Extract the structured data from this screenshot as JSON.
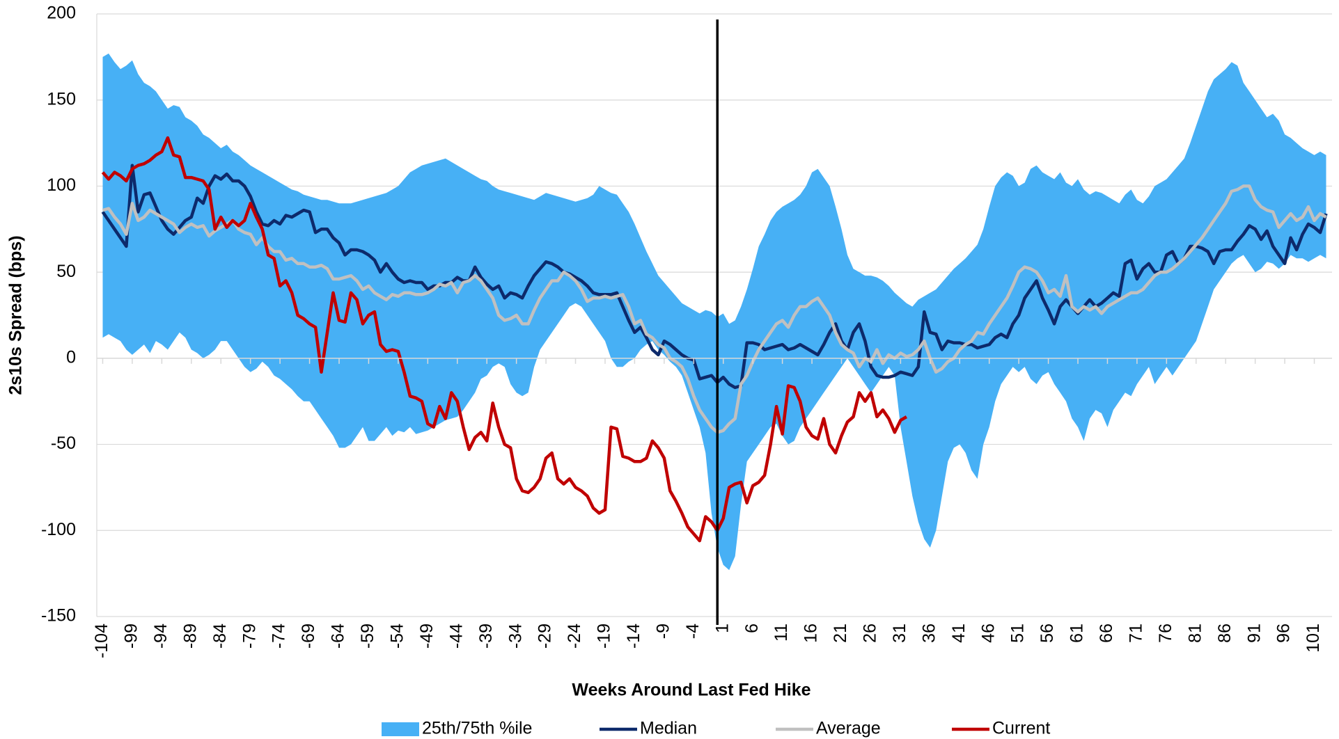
{
  "chart_data": {
    "type": "line",
    "y_label": "2s10s Spread (bps)",
    "x_label": "Weeks Around Last Fed Hike",
    "ylim": [
      -150,
      200
    ],
    "yticks": [
      -150,
      -100,
      -50,
      0,
      50,
      100,
      150,
      200
    ],
    "xlim": [
      -105,
      104
    ],
    "xticks": [
      -104,
      -99,
      -94,
      -89,
      -84,
      -79,
      -74,
      -69,
      -64,
      -59,
      -54,
      -49,
      -44,
      -39,
      -34,
      -29,
      -24,
      -19,
      -14,
      -9,
      -4,
      1,
      6,
      11,
      16,
      21,
      26,
      31,
      36,
      41,
      46,
      51,
      56,
      61,
      66,
      71,
      76,
      81,
      86,
      91,
      96,
      101
    ],
    "grid": true,
    "vline": 0,
    "x": [
      -104,
      -103,
      -102,
      -101,
      -100,
      -99,
      -98,
      -97,
      -96,
      -95,
      -94,
      -93,
      -92,
      -91,
      -90,
      -89,
      -88,
      -87,
      -86,
      -85,
      -84,
      -83,
      -82,
      -81,
      -80,
      -79,
      -78,
      -77,
      -76,
      -75,
      -74,
      -73,
      -72,
      -71,
      -70,
      -69,
      -68,
      -67,
      -66,
      -65,
      -64,
      -63,
      -62,
      -61,
      -60,
      -59,
      -58,
      -57,
      -56,
      -55,
      -54,
      -53,
      -52,
      -51,
      -50,
      -49,
      -48,
      -47,
      -46,
      -45,
      -44,
      -43,
      -42,
      -41,
      -40,
      -39,
      -38,
      -37,
      -36,
      -35,
      -34,
      -33,
      -32,
      -31,
      -30,
      -29,
      -28,
      -27,
      -26,
      -25,
      -24,
      -23,
      -22,
      -21,
      -20,
      -19,
      -18,
      -17,
      -16,
      -15,
      -14,
      -13,
      -12,
      -11,
      -10,
      -9,
      -8,
      -7,
      -6,
      -5,
      -4,
      -3,
      -2,
      -1,
      0,
      1,
      2,
      3,
      4,
      5,
      6,
      7,
      8,
      9,
      10,
      11,
      12,
      13,
      14,
      15,
      16,
      17,
      18,
      19,
      20,
      21,
      22,
      23,
      24,
      25,
      26,
      27,
      28,
      29,
      30,
      31,
      32,
      33,
      34,
      35,
      36,
      37,
      38,
      39,
      40,
      41,
      42,
      43,
      44,
      45,
      46,
      47,
      48,
      49,
      50,
      51,
      52,
      53,
      54,
      55,
      56,
      57,
      58,
      59,
      60,
      61,
      62,
      63,
      64,
      65,
      66,
      67,
      68,
      69,
      70,
      71,
      72,
      73,
      74,
      75,
      76,
      77,
      78,
      79,
      80,
      81,
      82,
      83,
      84,
      85,
      86,
      87,
      88,
      89,
      90,
      91,
      92,
      93,
      94,
      95,
      96,
      97,
      98,
      99,
      100,
      101,
      102,
      103
    ],
    "series": [
      {
        "name": "25th/75th %ile",
        "color": "#47b0f5",
        "type": "band",
        "upper": [
          175,
          177,
          172,
          168,
          170,
          173,
          165,
          160,
          158,
          155,
          150,
          145,
          147,
          146,
          140,
          138,
          135,
          130,
          128,
          125,
          122,
          124,
          120,
          118,
          115,
          112,
          110,
          108,
          106,
          104,
          102,
          100,
          98,
          97,
          95,
          94,
          93,
          92,
          92,
          91,
          90,
          90,
          90,
          91,
          92,
          93,
          94,
          95,
          96,
          98,
          100,
          104,
          108,
          110,
          112,
          113,
          114,
          115,
          116,
          114,
          112,
          110,
          108,
          106,
          104,
          103,
          100,
          98,
          97,
          96,
          95,
          94,
          93,
          92,
          94,
          96,
          95,
          94,
          93,
          92,
          91,
          92,
          93,
          95,
          100,
          98,
          96,
          95,
          90,
          85,
          78,
          70,
          62,
          55,
          48,
          44,
          40,
          36,
          32,
          30,
          28,
          26,
          28,
          27,
          24,
          26,
          20,
          22,
          30,
          40,
          52,
          65,
          72,
          80,
          85,
          88,
          90,
          92,
          95,
          100,
          108,
          110,
          105,
          100,
          88,
          75,
          60,
          52,
          50,
          48,
          48,
          47,
          45,
          42,
          38,
          35,
          32,
          30,
          34,
          36,
          38,
          40,
          44,
          48,
          52,
          55,
          58,
          62,
          66,
          75,
          88,
          100,
          105,
          108,
          106,
          100,
          102,
          110,
          112,
          108,
          106,
          104,
          108,
          102,
          100,
          104,
          98,
          95,
          97,
          96,
          94,
          92,
          90,
          95,
          98,
          92,
          90,
          94,
          100,
          102,
          104,
          108,
          112,
          116,
          125,
          135,
          145,
          155,
          162,
          165,
          168,
          172,
          170,
          160,
          155,
          150,
          145,
          140,
          142,
          138,
          130,
          128,
          125,
          122,
          120,
          118,
          120,
          118
        ],
        "lower": [
          12,
          14,
          12,
          10,
          5,
          2,
          5,
          8,
          3,
          10,
          8,
          5,
          10,
          15,
          12,
          5,
          3,
          0,
          2,
          5,
          10,
          10,
          5,
          0,
          -5,
          -8,
          -6,
          -2,
          -5,
          -10,
          -12,
          -15,
          -18,
          -22,
          -25,
          -25,
          -30,
          -35,
          -40,
          -45,
          -52,
          -52,
          -50,
          -45,
          -40,
          -48,
          -48,
          -44,
          -40,
          -45,
          -42,
          -43,
          -40,
          -44,
          -43,
          -42,
          -40,
          -38,
          -36,
          -35,
          -34,
          -30,
          -25,
          -20,
          -12,
          -10,
          -5,
          -3,
          -5,
          -15,
          -20,
          -22,
          -20,
          -5,
          5,
          10,
          15,
          20,
          25,
          30,
          32,
          30,
          25,
          20,
          15,
          10,
          0,
          -5,
          -5,
          -2,
          0,
          5,
          8,
          10,
          5,
          2,
          -2,
          -5,
          -10,
          -20,
          -30,
          -40,
          -55,
          -90,
          -110,
          -120,
          -123,
          -115,
          -85,
          -60,
          -55,
          -50,
          -45,
          -40,
          -38,
          -45,
          -50,
          -48,
          -40,
          -35,
          -30,
          -25,
          -20,
          -15,
          -10,
          -5,
          0,
          -5,
          -10,
          -15,
          -20,
          -15,
          -10,
          -5,
          -10,
          -40,
          -60,
          -80,
          -95,
          -105,
          -110,
          -100,
          -80,
          -60,
          -52,
          -50,
          -55,
          -65,
          -70,
          -50,
          -40,
          -25,
          -15,
          -10,
          -5,
          -8,
          -5,
          -12,
          -15,
          -10,
          -8,
          -15,
          -20,
          -25,
          -35,
          -40,
          -48,
          -35,
          -30,
          -32,
          -40,
          -30,
          -25,
          -20,
          -22,
          -15,
          -10,
          -5,
          -15,
          -10,
          -5,
          -10,
          -5,
          0,
          5,
          10,
          20,
          30,
          40,
          45,
          50,
          55,
          58,
          60,
          55,
          50,
          52,
          56,
          55,
          52,
          55,
          60,
          58,
          58,
          56,
          58,
          60,
          58
        ]
      },
      {
        "name": "Median",
        "color": "#0d2a6b",
        "values": [
          85,
          80,
          75,
          70,
          65,
          112,
          85,
          95,
          96,
          88,
          80,
          75,
          72,
          76,
          80,
          82,
          93,
          90,
          100,
          106,
          104,
          107,
          103,
          103,
          100,
          94,
          85,
          78,
          77,
          80,
          78,
          83,
          82,
          84,
          86,
          85,
          73,
          75,
          75,
          70,
          67,
          60,
          63,
          63,
          62,
          60,
          57,
          50,
          55,
          50,
          46,
          44,
          45,
          44,
          44,
          40,
          42,
          42,
          44,
          44,
          47,
          45,
          45,
          53,
          47,
          43,
          40,
          42,
          35,
          38,
          37,
          35,
          42,
          48,
          52,
          56,
          55,
          53,
          50,
          49,
          47,
          45,
          42,
          38,
          37,
          37,
          37,
          38,
          30,
          22,
          15,
          18,
          12,
          5,
          2,
          10,
          8,
          5,
          2,
          0,
          -1,
          -12,
          -11,
          -10,
          -14,
          -11,
          -15,
          -17,
          -16,
          9,
          9,
          8,
          5,
          6,
          7,
          8,
          5,
          6,
          8,
          6,
          4,
          2,
          8,
          15,
          20,
          10,
          5,
          15,
          20,
          10,
          -5,
          -10,
          -11,
          -11,
          -10,
          -8,
          -9,
          -10,
          -5,
          27,
          15,
          14,
          5,
          10,
          9,
          9,
          8,
          8,
          6,
          7,
          8,
          12,
          14,
          12,
          20,
          25,
          35,
          40,
          45,
          35,
          28,
          20,
          30,
          34,
          30,
          26,
          30,
          34,
          30,
          32,
          35,
          38,
          36,
          55,
          57,
          46,
          52,
          55,
          50,
          50,
          60,
          62,
          55,
          58,
          65,
          65,
          64,
          62,
          55,
          62,
          63,
          63,
          68,
          72,
          77,
          75,
          69,
          74,
          65,
          60,
          55,
          70,
          63,
          72,
          78,
          76,
          73,
          84
        ]
      },
      {
        "name": "Average",
        "color": "#c0c0c0",
        "values": [
          86,
          87,
          82,
          78,
          72,
          90,
          80,
          82,
          86,
          84,
          82,
          80,
          78,
          73,
          76,
          78,
          76,
          77,
          71,
          74,
          76,
          78,
          80,
          75,
          73,
          72,
          66,
          70,
          65,
          62,
          62,
          57,
          58,
          55,
          55,
          53,
          53,
          54,
          52,
          46,
          46,
          47,
          48,
          45,
          40,
          42,
          38,
          36,
          34,
          37,
          36,
          38,
          38,
          37,
          37,
          38,
          40,
          43,
          42,
          44,
          38,
          44,
          45,
          48,
          45,
          40,
          35,
          25,
          22,
          23,
          25,
          20,
          20,
          28,
          35,
          40,
          45,
          45,
          50,
          48,
          45,
          40,
          33,
          35,
          35,
          36,
          35,
          36,
          37,
          30,
          20,
          22,
          14,
          12,
          8,
          6,
          0,
          -2,
          -5,
          -12,
          -22,
          -30,
          -35,
          -40,
          -43,
          -42,
          -38,
          -35,
          -15,
          -10,
          -2,
          5,
          10,
          15,
          20,
          22,
          18,
          25,
          30,
          30,
          33,
          35,
          30,
          25,
          15,
          8,
          5,
          3,
          -5,
          0,
          -2,
          5,
          -3,
          2,
          0,
          3,
          1,
          2,
          5,
          10,
          0,
          -8,
          -6,
          -2,
          0,
          5,
          8,
          10,
          15,
          14,
          20,
          25,
          30,
          35,
          42,
          50,
          53,
          52,
          50,
          45,
          38,
          40,
          36,
          48,
          30,
          27,
          30,
          28,
          30,
          26,
          30,
          32,
          34,
          36,
          38,
          38,
          40,
          44,
          48,
          50,
          50,
          52,
          55,
          58,
          62,
          66,
          70,
          75,
          80,
          85,
          90,
          97,
          98,
          100,
          100,
          92,
          88,
          86,
          85,
          76,
          80,
          84,
          80,
          82,
          88,
          80,
          84,
          82
        ]
      },
      {
        "name": "Current",
        "color": "#c00000",
        "values": [
          108,
          104,
          108,
          106,
          103,
          110,
          112,
          113,
          115,
          118,
          120,
          128,
          118,
          117,
          105,
          105,
          104,
          103,
          98,
          75,
          82,
          76,
          80,
          77,
          80,
          90,
          82,
          75,
          60,
          58,
          42,
          45,
          38,
          25,
          23,
          20,
          18,
          -8,
          15,
          38,
          22,
          21,
          38,
          34,
          20,
          25,
          27,
          8,
          4,
          5,
          4,
          -8,
          -22,
          -23,
          -25,
          -38,
          -40,
          -28,
          -35,
          -20,
          -25,
          -40,
          -53,
          -46,
          -43,
          -48,
          -26,
          -40,
          -50,
          -52,
          -70,
          -77,
          -78,
          -75,
          -70,
          -58,
          -55,
          -70,
          -73,
          -70,
          -75,
          -77,
          -80,
          -87,
          -90,
          -88,
          -40,
          -41,
          -57,
          -58,
          -60,
          -60,
          -58,
          -48,
          -52,
          -58,
          -77,
          -83,
          -90,
          -98,
          -102,
          -106,
          -92,
          -95,
          -100,
          -93,
          -75,
          -73,
          -72,
          -84,
          -74,
          -72,
          -68,
          -50,
          -28,
          -44,
          -16,
          -17,
          -25,
          -40,
          -45,
          -47,
          -35,
          -50,
          -55,
          -45,
          -37,
          -34,
          -20,
          -25,
          -20,
          -34,
          -30,
          -35,
          -43,
          -36,
          -34,
          null,
          null,
          null,
          null,
          null,
          null,
          null,
          null,
          null,
          null,
          null,
          null,
          null,
          null,
          null,
          null,
          null,
          null,
          null,
          null,
          null,
          null,
          null,
          null,
          null,
          null,
          null,
          null,
          null,
          null,
          null,
          null,
          null,
          null,
          null,
          null,
          null,
          null,
          null,
          null,
          null,
          null,
          null,
          null,
          null,
          null,
          null,
          null,
          null,
          null,
          null,
          null,
          null,
          null,
          null,
          null,
          null,
          null,
          null,
          null,
          null,
          null,
          null,
          null,
          null,
          null,
          null,
          null,
          null,
          null,
          null
        ]
      }
    ]
  }
}
